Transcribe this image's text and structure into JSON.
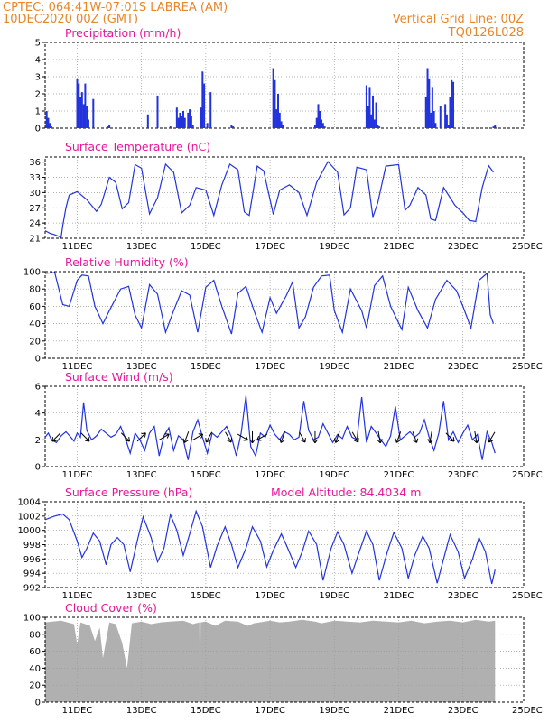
{
  "header": {
    "line1": "CPTEC:   064:41W-07:01S   LABREA (AM)",
    "line2": "10DEC2020 00Z (GMT)",
    "grid_note": "Vertical Grid Line: 00Z",
    "code": "TQ0126L028"
  },
  "x_ticks": [
    "11DEC",
    "13DEC",
    "15DEC",
    "17DEC",
    "19DEC",
    "21DEC",
    "23DEC",
    "25DEC"
  ],
  "colors": {
    "line": "#2233dd",
    "bars": "#2233dd",
    "cloud": "#b0b0b0",
    "title": "#e6189a",
    "header": "#e8862a"
  },
  "chart_data": [
    {
      "id": "precip",
      "type": "bar",
      "title": "Precipitation (mm/h)",
      "ylim": [
        0,
        5
      ],
      "yticks": [
        "0",
        "1",
        "2",
        "3",
        "4",
        "5"
      ],
      "x_unit": "day (0 = 10DEC 00Z)",
      "x": [
        0.05,
        0.1,
        0.15,
        0.2,
        1.0,
        1.05,
        1.1,
        1.15,
        1.2,
        1.25,
        1.3,
        1.35,
        1.5,
        1.95,
        2.0,
        3.2,
        3.5,
        3.9,
        4.1,
        4.15,
        4.2,
        4.25,
        4.3,
        4.35,
        4.45,
        4.5,
        4.55,
        4.6,
        4.85,
        4.9,
        4.95,
        5.05,
        5.15,
        5.8,
        5.85,
        7.1,
        7.15,
        7.2,
        7.25,
        7.3,
        7.35,
        7.4,
        8.4,
        8.45,
        8.5,
        8.55,
        8.6,
        8.65,
        8.7,
        10.0,
        10.05,
        10.1,
        10.15,
        10.2,
        10.25,
        10.3,
        10.35,
        10.4,
        11.85,
        11.9,
        11.95,
        12.0,
        12.05,
        12.1,
        12.15,
        12.3,
        12.45,
        12.5,
        12.55,
        12.6,
        12.65,
        12.7,
        13.95,
        14.0
      ],
      "values": [
        1.0,
        0.6,
        0.3,
        0.1,
        2.9,
        2.6,
        1.8,
        2.1,
        1.4,
        2.6,
        1.3,
        0.5,
        1.7,
        0.1,
        0.2,
        0.8,
        1.9,
        0.1,
        1.2,
        0.6,
        0.9,
        0.7,
        1.0,
        0.6,
        0.9,
        1.1,
        0.7,
        0.2,
        1.2,
        3.3,
        2.6,
        0.3,
        2.1,
        0.2,
        0.1,
        3.5,
        2.8,
        1.1,
        2.0,
        0.9,
        0.4,
        0.2,
        0.2,
        0.6,
        1.4,
        1.0,
        0.5,
        0.3,
        0.1,
        2.5,
        1.3,
        2.4,
        0.8,
        1.9,
        0.5,
        1.5,
        0.2,
        0.1,
        1.8,
        3.5,
        2.9,
        0.9,
        2.4,
        1.0,
        0.3,
        1.3,
        1.4,
        0.8,
        0.2,
        1.8,
        2.8,
        2.7,
        0.1,
        0.2
      ]
    },
    {
      "id": "temp",
      "type": "line",
      "title": "Surface Temperature (nC)",
      "ylim": [
        21,
        37
      ],
      "yticks": [
        "21",
        "24",
        "27",
        "30",
        "33",
        "36"
      ],
      "x": [
        0,
        0.15,
        0.3,
        0.5,
        0.55,
        0.65,
        0.75,
        1.0,
        1.3,
        1.6,
        1.75,
        2.0,
        2.2,
        2.4,
        2.6,
        2.8,
        3.0,
        3.25,
        3.5,
        3.75,
        4.0,
        4.25,
        4.5,
        4.7,
        5.0,
        5.25,
        5.5,
        5.75,
        6.0,
        6.2,
        6.35,
        6.6,
        6.8,
        7.1,
        7.3,
        7.6,
        7.9,
        8.15,
        8.45,
        8.8,
        9.1,
        9.3,
        9.5,
        9.7,
        10.0,
        10.2,
        10.35,
        10.6,
        11.0,
        11.2,
        11.35,
        11.6,
        11.85,
        12.0,
        12.15,
        12.4,
        12.6,
        12.75,
        13.0,
        13.2,
        13.4,
        13.6,
        13.8,
        13.95
      ],
      "values": [
        22.5,
        22.0,
        21.7,
        21.2,
        23.5,
        27.0,
        29.5,
        30.2,
        28.6,
        26.3,
        27.7,
        33.0,
        32.0,
        26.8,
        28.0,
        35.5,
        34.8,
        25.8,
        29.0,
        35.6,
        34.0,
        26.0,
        27.5,
        31.0,
        30.5,
        25.5,
        31.5,
        35.6,
        34.5,
        26.2,
        25.5,
        35.2,
        34.3,
        25.7,
        30.5,
        31.5,
        30.0,
        25.5,
        32.0,
        36.1,
        34.0,
        25.6,
        27.0,
        35.0,
        34.5,
        25.2,
        28.0,
        35.2,
        35.5,
        26.5,
        27.5,
        31.0,
        29.5,
        24.8,
        24.5,
        31.0,
        29.0,
        27.5,
        26.0,
        24.5,
        24.3,
        31.0,
        35.3,
        34.0
      ]
    },
    {
      "id": "rh",
      "type": "line",
      "title": "Relative Humidity (%)",
      "ylim": [
        0,
        100
      ],
      "yticks": [
        "0",
        "20",
        "40",
        "60",
        "80",
        "100"
      ],
      "x": [
        0,
        0.3,
        0.55,
        0.75,
        1.0,
        1.15,
        1.35,
        1.55,
        1.8,
        2.0,
        2.35,
        2.6,
        2.8,
        3.0,
        3.25,
        3.5,
        3.75,
        4.0,
        4.25,
        4.5,
        4.75,
        5.0,
        5.25,
        5.5,
        5.8,
        6.0,
        6.25,
        6.5,
        6.75,
        7.0,
        7.2,
        7.5,
        7.7,
        7.9,
        8.1,
        8.35,
        8.6,
        8.85,
        9.0,
        9.25,
        9.5,
        9.85,
        10.0,
        10.25,
        10.5,
        10.75,
        11.1,
        11.3,
        11.6,
        11.9,
        12.15,
        12.5,
        12.8,
        13.0,
        13.25,
        13.5,
        13.75,
        13.85,
        13.95
      ],
      "values": [
        98,
        99,
        62,
        60,
        90,
        96,
        95,
        60,
        40,
        55,
        80,
        83,
        50,
        35,
        85,
        74,
        30,
        55,
        78,
        73,
        30,
        82,
        90,
        60,
        28,
        75,
        83,
        55,
        30,
        70,
        52,
        72,
        88,
        35,
        48,
        82,
        95,
        96,
        55,
        30,
        80,
        55,
        35,
        84,
        95,
        60,
        33,
        82,
        55,
        35,
        68,
        90,
        78,
        60,
        35,
        90,
        98,
        50,
        40
      ]
    },
    {
      "id": "wind",
      "type": "line",
      "title": "Surface Wind (m/s)",
      "ylim": [
        0,
        6
      ],
      "yticks": [
        "0",
        "2",
        "4",
        "6"
      ],
      "x": [
        0,
        0.1,
        0.2,
        0.35,
        0.5,
        0.65,
        0.8,
        0.9,
        1.0,
        1.1,
        1.2,
        1.3,
        1.45,
        1.6,
        1.75,
        1.9,
        2.05,
        2.2,
        2.35,
        2.5,
        2.65,
        2.8,
        2.95,
        3.1,
        3.25,
        3.4,
        3.55,
        3.7,
        3.85,
        4.0,
        4.15,
        4.3,
        4.45,
        4.6,
        4.75,
        4.9,
        5.05,
        5.2,
        5.35,
        5.5,
        5.65,
        5.8,
        5.95,
        6.1,
        6.25,
        6.4,
        6.55,
        6.7,
        6.85,
        7.0,
        7.15,
        7.3,
        7.45,
        7.6,
        7.75,
        7.9,
        8.05,
        8.2,
        8.35,
        8.5,
        8.65,
        8.8,
        8.95,
        9.1,
        9.25,
        9.4,
        9.55,
        9.7,
        9.85,
        10.0,
        10.15,
        10.3,
        10.45,
        10.6,
        10.75,
        10.9,
        11.05,
        11.2,
        11.35,
        11.5,
        11.65,
        11.8,
        11.95,
        12.1,
        12.25,
        12.4,
        12.55,
        12.7,
        12.85,
        13.0,
        13.15,
        13.3,
        13.45,
        13.6,
        13.75,
        13.9,
        14.0
      ],
      "values": [
        2.2,
        2.5,
        2.0,
        1.8,
        2.3,
        2.6,
        2.2,
        1.9,
        2.5,
        2.2,
        4.8,
        2.7,
        2.0,
        2.3,
        2.8,
        2.5,
        2.2,
        2.4,
        3.0,
        2.1,
        1.0,
        2.5,
        2.0,
        1.2,
        2.5,
        3.0,
        0.8,
        2.3,
        2.9,
        1.2,
        2.3,
        2.0,
        0.5,
        2.6,
        3.5,
        2.2,
        1.0,
        2.5,
        2.2,
        2.6,
        3.0,
        2.2,
        0.8,
        2.5,
        5.3,
        1.5,
        0.8,
        2.5,
        2.2,
        3.1,
        2.4,
        2.0,
        2.6,
        2.4,
        2.0,
        2.2,
        4.9,
        2.7,
        2.0,
        2.2,
        3.2,
        2.5,
        1.8,
        2.4,
        2.1,
        3.0,
        2.2,
        2.0,
        5.2,
        1.8,
        3.0,
        2.5,
        2.0,
        1.5,
        2.3,
        4.5,
        2.0,
        2.3,
        2.6,
        2.2,
        2.5,
        3.5,
        2.2,
        1.2,
        2.5,
        4.9,
        2.0,
        2.6,
        1.8,
        2.5,
        3.1,
        2.0,
        2.4,
        0.5,
        2.6,
        1.8,
        1.0
      ],
      "arrows": [
        {
          "x": 0.35,
          "dir": 225
        },
        {
          "x": 1.25,
          "dir": 135
        },
        {
          "x": 2.5,
          "dir": 135
        },
        {
          "x": 3.0,
          "dir": 45
        },
        {
          "x": 3.7,
          "dir": 60
        },
        {
          "x": 4.4,
          "dir": 200
        },
        {
          "x": 4.75,
          "dir": 60
        },
        {
          "x": 5.1,
          "dir": 210
        },
        {
          "x": 5.7,
          "dir": 150
        },
        {
          "x": 6.15,
          "dir": 120
        },
        {
          "x": 6.45,
          "dir": 180
        },
        {
          "x": 6.75,
          "dir": 240
        },
        {
          "x": 7.4,
          "dir": 200
        },
        {
          "x": 8.0,
          "dir": 150
        },
        {
          "x": 8.4,
          "dir": 180
        },
        {
          "x": 9.1,
          "dir": 200
        },
        {
          "x": 9.65,
          "dir": 150
        },
        {
          "x": 10.4,
          "dir": 170
        },
        {
          "x": 11.0,
          "dir": 200
        },
        {
          "x": 11.5,
          "dir": 160
        },
        {
          "x": 12.0,
          "dir": 190
        },
        {
          "x": 12.6,
          "dir": 135
        },
        {
          "x": 13.4,
          "dir": 170
        },
        {
          "x": 13.9,
          "dir": 210
        }
      ]
    },
    {
      "id": "pres",
      "type": "line",
      "title": "Surface Pressure (hPa)",
      "subtitle": "Model Altitude: 84.4034 m",
      "ylim": [
        992,
        1004
      ],
      "yticks": [
        "992",
        "994",
        "996",
        "998",
        "1000",
        "1002",
        "1004"
      ],
      "x": [
        0,
        0.3,
        0.55,
        0.75,
        1.0,
        1.15,
        1.3,
        1.5,
        1.7,
        1.9,
        2.05,
        2.25,
        2.45,
        2.65,
        2.85,
        3.05,
        3.3,
        3.5,
        3.7,
        3.9,
        4.1,
        4.3,
        4.5,
        4.7,
        4.9,
        5.15,
        5.35,
        5.6,
        5.8,
        6.0,
        6.25,
        6.45,
        6.7,
        6.9,
        7.1,
        7.35,
        7.55,
        7.8,
        8.0,
        8.2,
        8.45,
        8.65,
        8.9,
        9.1,
        9.3,
        9.55,
        9.75,
        10.0,
        10.2,
        10.4,
        10.65,
        10.85,
        11.1,
        11.3,
        11.5,
        11.75,
        11.95,
        12.2,
        12.4,
        12.6,
        12.85,
        13.05,
        13.3,
        13.5,
        13.7,
        13.9,
        14.0
      ],
      "values": [
        1001.5,
        1002.0,
        1002.3,
        1001.5,
        998.5,
        996.2,
        997.5,
        999.6,
        998.5,
        995.2,
        998.0,
        999.0,
        998.0,
        994.2,
        998.2,
        1001.9,
        999.0,
        995.6,
        997.5,
        1002.2,
        1000.0,
        996.5,
        999.5,
        1002.7,
        1000.5,
        994.8,
        997.8,
        1000.5,
        998.0,
        994.8,
        997.5,
        1000.5,
        998.5,
        994.9,
        997.2,
        999.5,
        997.5,
        994.8,
        997.0,
        999.9,
        998.0,
        993.0,
        997.5,
        999.8,
        998.0,
        994.0,
        996.7,
        999.9,
        998.0,
        993.0,
        997.0,
        999.7,
        997.5,
        993.3,
        996.5,
        999.2,
        997.5,
        992.6,
        996.0,
        999.4,
        997.0,
        993.3,
        996.0,
        999.0,
        997.0,
        992.5,
        994.5
      ]
    },
    {
      "id": "cloud",
      "type": "area",
      "title": "Cloud Cover (%)",
      "ylim": [
        0,
        100
      ],
      "yticks": [
        "0",
        "20",
        "40",
        "60",
        "80",
        "100"
      ],
      "x": [
        0,
        0.5,
        0.9,
        1.0,
        1.1,
        1.4,
        1.55,
        1.7,
        1.8,
        2.0,
        2.2,
        2.4,
        2.55,
        2.7,
        3.0,
        3.3,
        3.6,
        3.9,
        4.3,
        4.6,
        4.8,
        4.82,
        4.84,
        5.0,
        5.3,
        5.6,
        6.0,
        6.3,
        6.5,
        7.0,
        7.3,
        7.6,
        8.0,
        8.4,
        8.6,
        9.0,
        9.4,
        9.8,
        10.2,
        10.6,
        11.0,
        11.4,
        11.8,
        12.2,
        12.6,
        13.0,
        13.4,
        13.8,
        14.0
      ],
      "values": [
        94,
        96,
        92,
        68,
        94,
        90,
        72,
        88,
        52,
        94,
        92,
        70,
        40,
        93,
        95,
        92,
        94,
        95,
        96,
        92,
        94,
        2,
        94,
        95,
        90,
        96,
        95,
        90,
        93,
        96,
        94,
        95,
        97,
        95,
        93,
        96,
        95,
        94,
        96,
        95,
        94,
        96,
        93,
        95,
        96,
        94,
        97,
        95,
        96
      ]
    }
  ]
}
